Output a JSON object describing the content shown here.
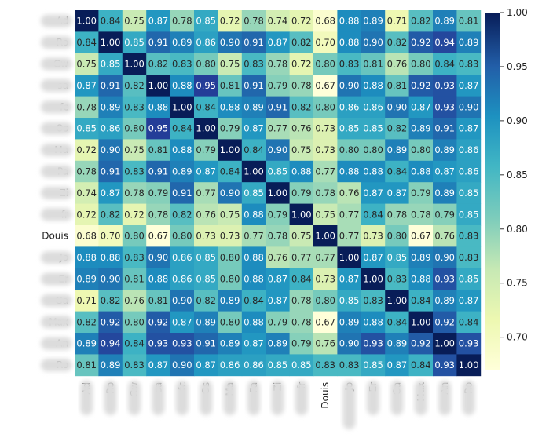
{
  "chart_data": {
    "type": "heatmap",
    "title": "",
    "row_labels": [
      "Ad",
      "Ro",
      "Gw",
      "sa",
      "fc",
      "Os",
      "Ma",
      "Pa",
      "Zi",
      "fr",
      "Douis",
      "Jo",
      "Er",
      "Ga",
      "Max",
      "An",
      "Ro"
    ],
    "col_labels": [
      "Ad",
      "Ro",
      "Gw",
      "sa",
      "fc",
      "Os",
      "Ma",
      "Pa",
      "Zi",
      "fr",
      "Douis",
      "Jo",
      "Er",
      "Ga",
      "Max",
      "An",
      "Ro"
    ],
    "values": [
      [
        1.0,
        0.84,
        0.75,
        0.87,
        0.78,
        0.85,
        0.72,
        0.78,
        0.74,
        0.72,
        0.68,
        0.88,
        0.89,
        0.71,
        0.82,
        0.89,
        0.81
      ],
      [
        0.84,
        1.0,
        0.85,
        0.91,
        0.89,
        0.86,
        0.9,
        0.91,
        0.87,
        0.82,
        0.7,
        0.88,
        0.9,
        0.82,
        0.92,
        0.94,
        0.89
      ],
      [
        0.75,
        0.85,
        1.0,
        0.82,
        0.83,
        0.8,
        0.75,
        0.83,
        0.78,
        0.72,
        0.8,
        0.83,
        0.81,
        0.76,
        0.8,
        0.84,
        0.83
      ],
      [
        0.87,
        0.91,
        0.82,
        1.0,
        0.88,
        0.95,
        0.81,
        0.91,
        0.79,
        0.78,
        0.67,
        0.9,
        0.88,
        0.81,
        0.92,
        0.93,
        0.87
      ],
      [
        0.78,
        0.89,
        0.83,
        0.88,
        1.0,
        0.84,
        0.88,
        0.89,
        0.91,
        0.82,
        0.8,
        0.86,
        0.86,
        0.9,
        0.87,
        0.93,
        0.9
      ],
      [
        0.85,
        0.86,
        0.8,
        0.95,
        0.84,
        1.0,
        0.79,
        0.87,
        0.77,
        0.76,
        0.73,
        0.85,
        0.85,
        0.82,
        0.89,
        0.91,
        0.87
      ],
      [
        0.72,
        0.9,
        0.75,
        0.81,
        0.88,
        0.79,
        1.0,
        0.84,
        0.9,
        0.75,
        0.73,
        0.8,
        0.8,
        0.89,
        0.8,
        0.89,
        0.86
      ],
      [
        0.78,
        0.91,
        0.83,
        0.91,
        0.89,
        0.87,
        0.84,
        1.0,
        0.85,
        0.88,
        0.77,
        0.88,
        0.88,
        0.84,
        0.88,
        0.87,
        0.86
      ],
      [
        0.74,
        0.87,
        0.78,
        0.79,
        0.91,
        0.77,
        0.9,
        0.85,
        1.0,
        0.79,
        0.78,
        0.76,
        0.87,
        0.87,
        0.79,
        0.89,
        0.85
      ],
      [
        0.72,
        0.82,
        0.72,
        0.78,
        0.82,
        0.76,
        0.75,
        0.88,
        0.79,
        1.0,
        0.75,
        0.77,
        0.84,
        0.78,
        0.78,
        0.79,
        0.85
      ],
      [
        0.68,
        0.7,
        0.8,
        0.67,
        0.8,
        0.73,
        0.73,
        0.77,
        0.78,
        0.75,
        1.0,
        0.77,
        0.73,
        0.8,
        0.67,
        0.76,
        0.83
      ],
      [
        0.88,
        0.88,
        0.83,
        0.9,
        0.86,
        0.85,
        0.8,
        0.88,
        0.76,
        0.77,
        0.77,
        1.0,
        0.87,
        0.85,
        0.89,
        0.9,
        0.83
      ],
      [
        0.89,
        0.9,
        0.81,
        0.88,
        0.86,
        0.85,
        0.8,
        0.88,
        0.87,
        0.84,
        0.73,
        0.87,
        1.0,
        0.83,
        0.88,
        0.93,
        0.85
      ],
      [
        0.71,
        0.82,
        0.76,
        0.81,
        0.9,
        0.82,
        0.89,
        0.84,
        0.87,
        0.78,
        0.8,
        0.85,
        0.83,
        1.0,
        0.84,
        0.89,
        0.87
      ],
      [
        0.82,
        0.92,
        0.8,
        0.92,
        0.87,
        0.89,
        0.8,
        0.88,
        0.79,
        0.78,
        0.67,
        0.89,
        0.88,
        0.84,
        1.0,
        0.92,
        0.84
      ],
      [
        0.89,
        0.94,
        0.84,
        0.93,
        0.93,
        0.91,
        0.89,
        0.87,
        0.89,
        0.79,
        0.76,
        0.9,
        0.93,
        0.89,
        0.92,
        1.0,
        0.93
      ],
      [
        0.81,
        0.89,
        0.83,
        0.87,
        0.9,
        0.87,
        0.86,
        0.86,
        0.85,
        0.85,
        0.83,
        0.83,
        0.85,
        0.87,
        0.84,
        0.93,
        1.0
      ]
    ],
    "colormap": "YlGnBu",
    "vmin": 0.67,
    "vmax": 1.0,
    "colorbar_ticks": [
      "1.00",
      "0.95",
      "0.90",
      "0.85",
      "0.80",
      "0.75",
      "0.70"
    ],
    "annotations": true,
    "annotation_format": "0.00",
    "colorbar_placement": "right"
  }
}
